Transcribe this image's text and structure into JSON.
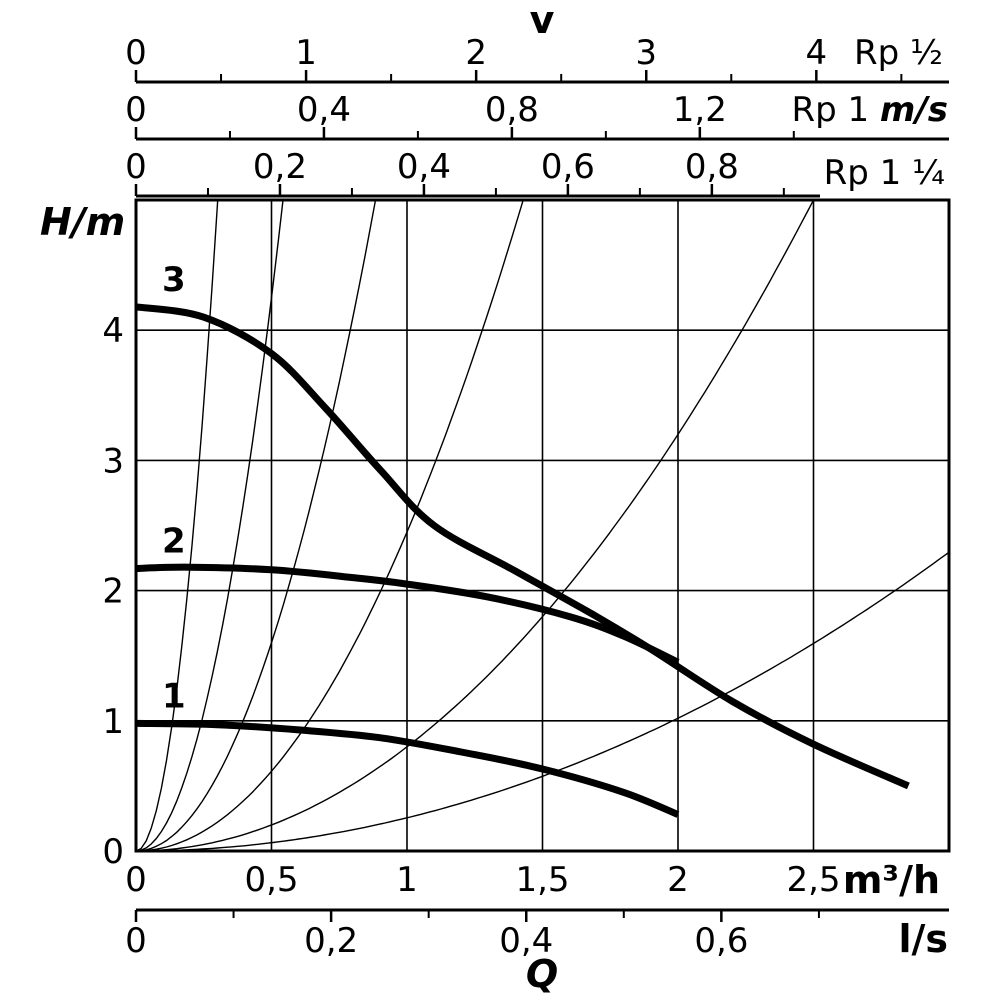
{
  "chart_data": {
    "type": "line",
    "title": "",
    "xlabel": "m³/h",
    "xlabel_secondary": "l/s",
    "x_symbol": "Q",
    "ylabel": "H/m",
    "xlim": [
      0,
      3
    ],
    "ylim": [
      0,
      5
    ],
    "x_ticks": [
      {
        "value": 0,
        "label": "0"
      },
      {
        "value": 0.5,
        "label": "0,5"
      },
      {
        "value": 1,
        "label": "1"
      },
      {
        "value": 1.5,
        "label": "1,5"
      },
      {
        "value": 2,
        "label": "2"
      },
      {
        "value": 2.5,
        "label": "2,5"
      }
    ],
    "y_ticks": [
      {
        "value": 0,
        "label": "0"
      },
      {
        "value": 1,
        "label": "1"
      },
      {
        "value": 2,
        "label": "2"
      },
      {
        "value": 3,
        "label": "3"
      },
      {
        "value": 4,
        "label": "4"
      }
    ],
    "ls_axis": {
      "label": "l/s",
      "ticks": [
        {
          "value": 0,
          "label": "0"
        },
        {
          "value": 0.2,
          "label": "0,2"
        },
        {
          "value": 0.4,
          "label": "0,4"
        },
        {
          "value": 0.6,
          "label": "0,6"
        }
      ]
    },
    "velocity_axes": {
      "symbol": "v",
      "unit": "m/s",
      "scales": [
        {
          "name": "Rp ½",
          "unit_label": "",
          "q_per_unit": 0.6276,
          "ticks": [
            {
              "value": 0,
              "label": "0"
            },
            {
              "value": 1,
              "label": "1"
            },
            {
              "value": 2,
              "label": "2"
            },
            {
              "value": 3,
              "label": "3"
            },
            {
              "value": 4,
              "label": "4"
            }
          ],
          "minor_step": 0.5
        },
        {
          "name": "Rp 1",
          "unit_label": "m/s",
          "q_per_unit": 1.7338,
          "ticks": [
            {
              "value": 0,
              "label": "0"
            },
            {
              "value": 0.4,
              "label": "0,4"
            },
            {
              "value": 0.8,
              "label": "0,8"
            },
            {
              "value": 1.2,
              "label": "1,2"
            }
          ],
          "minor_step": 0.2
        },
        {
          "name": "Rp 1 ¼",
          "unit_label": "",
          "q_per_unit": 2.6562,
          "ticks": [
            {
              "value": 0,
              "label": "0"
            },
            {
              "value": 0.2,
              "label": "0,2"
            },
            {
              "value": 0.4,
              "label": "0,4"
            },
            {
              "value": 0.6,
              "label": "0,6"
            },
            {
              "value": 0.8,
              "label": "0,8"
            }
          ],
          "minor_step": 0.1
        }
      ]
    },
    "series": [
      {
        "name": "1",
        "points": [
          [
            0,
            0.98
          ],
          [
            0.3,
            0.97
          ],
          [
            0.6,
            0.93
          ],
          [
            0.9,
            0.87
          ],
          [
            1.2,
            0.76
          ],
          [
            1.5,
            0.63
          ],
          [
            1.8,
            0.45
          ],
          [
            2.0,
            0.28
          ]
        ]
      },
      {
        "name": "2",
        "points": [
          [
            0,
            2.17
          ],
          [
            0.2,
            2.18
          ],
          [
            0.5,
            2.16
          ],
          [
            0.8,
            2.1
          ],
          [
            1.0,
            2.05
          ],
          [
            1.3,
            1.95
          ],
          [
            1.6,
            1.8
          ],
          [
            1.8,
            1.65
          ],
          [
            2.0,
            1.45
          ]
        ]
      },
      {
        "name": "3",
        "points": [
          [
            0,
            4.18
          ],
          [
            0.25,
            4.1
          ],
          [
            0.5,
            3.82
          ],
          [
            0.7,
            3.4
          ],
          [
            0.9,
            2.93
          ],
          [
            1.1,
            2.5
          ],
          [
            1.4,
            2.15
          ],
          [
            1.7,
            1.8
          ],
          [
            1.9,
            1.55
          ],
          [
            2.2,
            1.15
          ],
          [
            2.5,
            0.82
          ],
          [
            2.85,
            0.5
          ]
        ]
      }
    ],
    "system_curves_k": [
      55,
      17,
      6.4,
      2.45,
      0.8,
      0.255
    ],
    "grid": true,
    "curve_color": "#000000"
  }
}
